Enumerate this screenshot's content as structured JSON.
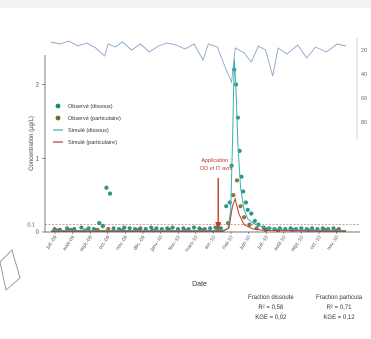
{
  "chart_data": {
    "type": "scatter",
    "title": "",
    "xlabel": "Date",
    "ylabel": "Concentration (µg/L)",
    "x_ticks": [
      "juil.-09",
      "août-09",
      "sept.-09",
      "oct.-09",
      "nov.-09",
      "déc.-09",
      "janv.-10",
      "févr.-10",
      "mars-10",
      "avr.-10",
      "mai-10",
      "juin-10",
      "juil.-10",
      "août-10",
      "sept.-10",
      "oct.-10",
      "nov.-10"
    ],
    "y_ticks": [
      "0",
      "1",
      "2"
    ],
    "y_ref_label": "0.1",
    "ylim": [
      0,
      2.4
    ],
    "rain_axis_ticks": [
      "20",
      "40",
      "60",
      "80"
    ],
    "legend": {
      "position": "top-left",
      "entries": [
        {
          "label": "Observé (dissous)",
          "kind": "point",
          "color": "#17897a"
        },
        {
          "label": "Observé (particulaire)",
          "kind": "point",
          "color": "#7a6a2a"
        },
        {
          "label": "Simulé (dissous)",
          "kind": "line",
          "color": "#36b3b0"
        },
        {
          "label": "Simulé (particulaire)",
          "kind": "line",
          "color": "#c0392b"
        }
      ]
    },
    "annotation": {
      "lines": [
        "Application :",
        "DD et IT avril"
      ],
      "x_month": 9.35,
      "color": "#c0392b"
    },
    "series": [
      {
        "name": "Observé (dissous)",
        "color": "#17897a",
        "points": [
          [
            0.2,
            0.04
          ],
          [
            0.5,
            0.03
          ],
          [
            0.9,
            0.05
          ],
          [
            1.3,
            0.04
          ],
          [
            1.7,
            0.06
          ],
          [
            2.1,
            0.05
          ],
          [
            2.4,
            0.04
          ],
          [
            2.7,
            0.12
          ],
          [
            2.9,
            0.08
          ],
          [
            3.1,
            0.6
          ],
          [
            3.3,
            0.52
          ],
          [
            3.5,
            0.05
          ],
          [
            3.8,
            0.04
          ],
          [
            4.1,
            0.06
          ],
          [
            4.4,
            0.05
          ],
          [
            4.7,
            0.04
          ],
          [
            5.0,
            0.05
          ],
          [
            5.3,
            0.04
          ],
          [
            5.6,
            0.06
          ],
          [
            5.9,
            0.05
          ],
          [
            6.2,
            0.04
          ],
          [
            6.5,
            0.05
          ],
          [
            6.8,
            0.06
          ],
          [
            7.1,
            0.04
          ],
          [
            7.4,
            0.05
          ],
          [
            7.7,
            0.04
          ],
          [
            8.0,
            0.06
          ],
          [
            8.3,
            0.05
          ],
          [
            8.6,
            0.04
          ],
          [
            8.9,
            0.05
          ],
          [
            9.2,
            0.06
          ],
          [
            9.5,
            0.05
          ],
          [
            9.8,
            0.35
          ],
          [
            10.0,
            0.4
          ],
          [
            10.1,
            0.9
          ],
          [
            10.25,
            2.2
          ],
          [
            10.35,
            2.0
          ],
          [
            10.45,
            1.55
          ],
          [
            10.55,
            1.1
          ],
          [
            10.65,
            0.75
          ],
          [
            10.75,
            0.55
          ],
          [
            10.9,
            0.4
          ],
          [
            11.0,
            0.3
          ],
          [
            11.2,
            0.25
          ],
          [
            11.4,
            0.15
          ],
          [
            11.6,
            0.1
          ],
          [
            11.9,
            0.06
          ],
          [
            12.2,
            0.05
          ],
          [
            12.5,
            0.04
          ],
          [
            12.8,
            0.05
          ],
          [
            13.1,
            0.04
          ],
          [
            13.4,
            0.05
          ],
          [
            13.7,
            0.04
          ],
          [
            14.0,
            0.05
          ],
          [
            14.3,
            0.04
          ],
          [
            14.6,
            0.05
          ],
          [
            14.9,
            0.04
          ],
          [
            15.2,
            0.05
          ],
          [
            15.5,
            0.04
          ],
          [
            15.8,
            0.05
          ],
          [
            16.1,
            0.04
          ]
        ]
      },
      {
        "name": "Observé (particulaire)",
        "color": "#7a6a2a",
        "points": [
          [
            0.4,
            0.02
          ],
          [
            1.1,
            0.03
          ],
          [
            1.9,
            0.02
          ],
          [
            2.6,
            0.03
          ],
          [
            3.2,
            0.04
          ],
          [
            4.0,
            0.02
          ],
          [
            4.9,
            0.03
          ],
          [
            5.7,
            0.02
          ],
          [
            6.6,
            0.03
          ],
          [
            7.5,
            0.02
          ],
          [
            8.4,
            0.03
          ],
          [
            9.3,
            0.02
          ],
          [
            9.9,
            0.12
          ],
          [
            10.2,
            0.5
          ],
          [
            10.4,
            0.7
          ],
          [
            10.6,
            0.35
          ],
          [
            10.8,
            0.2
          ],
          [
            11.1,
            0.1
          ],
          [
            11.5,
            0.05
          ],
          [
            12.0,
            0.03
          ],
          [
            12.7,
            0.02
          ],
          [
            13.5,
            0.03
          ],
          [
            14.4,
            0.02
          ],
          [
            15.3,
            0.03
          ],
          [
            16.0,
            0.02
          ]
        ]
      },
      {
        "name": "Simulé (dissous)",
        "color": "#36b3b0",
        "points": [
          [
            0,
            0.02
          ],
          [
            9.6,
            0.02
          ],
          [
            9.9,
            0.05
          ],
          [
            10.05,
            0.3
          ],
          [
            10.15,
            1.2
          ],
          [
            10.25,
            2.35
          ],
          [
            10.35,
            1.9
          ],
          [
            10.45,
            1.2
          ],
          [
            10.6,
            0.6
          ],
          [
            10.8,
            0.3
          ],
          [
            11.0,
            0.18
          ],
          [
            11.3,
            0.12
          ],
          [
            11.7,
            0.08
          ],
          [
            12.2,
            0.05
          ],
          [
            13.0,
            0.03
          ],
          [
            16.5,
            0.02
          ]
        ]
      },
      {
        "name": "Simulé (particulaire)",
        "color": "#c0392b",
        "points": [
          [
            0,
            0.01
          ],
          [
            9.6,
            0.01
          ],
          [
            9.95,
            0.05
          ],
          [
            10.15,
            0.35
          ],
          [
            10.3,
            0.45
          ],
          [
            10.5,
            0.25
          ],
          [
            10.8,
            0.1
          ],
          [
            11.3,
            0.04
          ],
          [
            12.0,
            0.02
          ],
          [
            16.5,
            0.01
          ]
        ]
      }
    ],
    "rainfall": {
      "color": "#8ca7c9",
      "description_points": [
        [
          0,
          4
        ],
        [
          0.5,
          6
        ],
        [
          1,
          3
        ],
        [
          1.5,
          8
        ],
        [
          2,
          5
        ],
        [
          2.5,
          10
        ],
        [
          3,
          18
        ],
        [
          3.2,
          6
        ],
        [
          3.6,
          9
        ],
        [
          4,
          4
        ],
        [
          4.5,
          12
        ],
        [
          5,
          6
        ],
        [
          5.5,
          14
        ],
        [
          6,
          8
        ],
        [
          6.5,
          5
        ],
        [
          7,
          7
        ],
        [
          7.5,
          11
        ],
        [
          8,
          6
        ],
        [
          8.5,
          22
        ],
        [
          8.8,
          6
        ],
        [
          9.3,
          9
        ],
        [
          9.8,
          32
        ],
        [
          10.1,
          44
        ],
        [
          10.3,
          10
        ],
        [
          10.8,
          15
        ],
        [
          11.2,
          24
        ],
        [
          11.6,
          8
        ],
        [
          12,
          12
        ],
        [
          12.4,
          38
        ],
        [
          12.7,
          10
        ],
        [
          13.2,
          16
        ],
        [
          13.8,
          7
        ],
        [
          14.3,
          20
        ],
        [
          14.8,
          9
        ],
        [
          15.4,
          14
        ],
        [
          16,
          6
        ],
        [
          16.5,
          8
        ]
      ]
    }
  },
  "stats": {
    "dissous": {
      "title": "Fraction dissoute",
      "r2": "R² = 0,58",
      "kge": "KGE = 0,02"
    },
    "particulaire": {
      "title": "Fraction particula",
      "r2": "R² = 0,71",
      "kge": "KGE = 0,12"
    }
  }
}
